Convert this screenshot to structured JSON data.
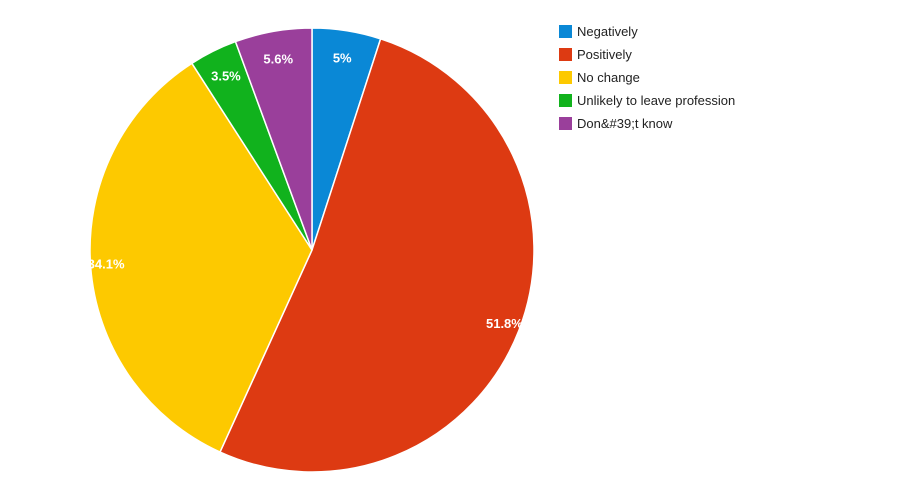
{
  "chart_data": {
    "type": "pie",
    "legend_position": "right",
    "slices": [
      {
        "label": "Negatively",
        "value": 5.0,
        "display": "5%",
        "color": "#0a88d6"
      },
      {
        "label": "Positively",
        "value": 51.8,
        "display": "51.8%",
        "color": "#dd3a12"
      },
      {
        "label": "No change",
        "value": 34.1,
        "display": "34.1%",
        "color": "#fdc900"
      },
      {
        "label": "Unlikely to leave profession",
        "value": 3.5,
        "display": "3.5%",
        "color": "#11b21d"
      },
      {
        "label": "Don&#39;t know",
        "value": 5.6,
        "display": "5.6%",
        "color": "#9a3f9b"
      }
    ]
  }
}
